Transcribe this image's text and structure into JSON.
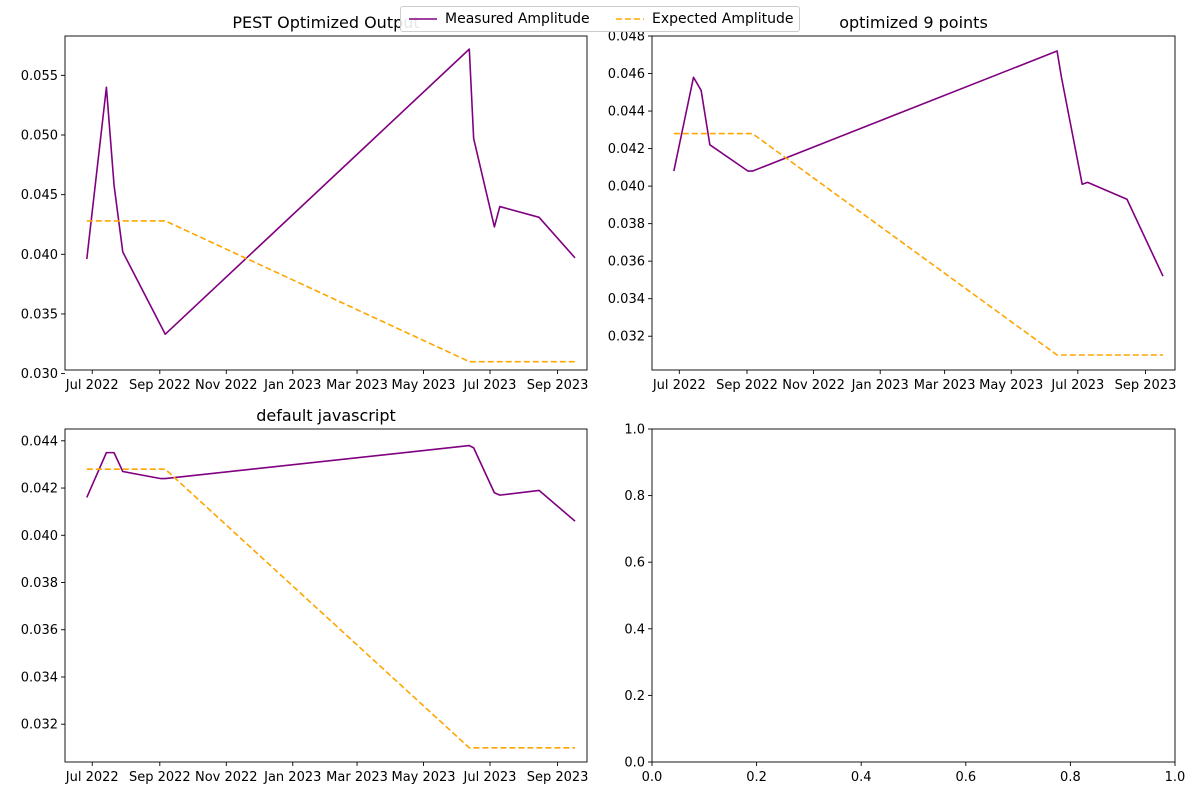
{
  "legend": {
    "items": [
      {
        "label": "Measured Amplitude",
        "color": "#800080",
        "style": "solid"
      },
      {
        "label": "Expected Amplitude",
        "color": "#FFA500",
        "style": "dashed"
      }
    ],
    "placement": "top-center"
  },
  "chart_data": [
    {
      "type": "line",
      "title": "PEST Optimized Output",
      "xlabel": "",
      "ylabel": "",
      "x_axis": "date",
      "xlim": [
        "2022-06-06",
        "2023-09-28"
      ],
      "ylim": [
        0.0303,
        0.0583
      ],
      "xticks": [
        {
          "date": "2022-07-01",
          "label": "Jul 2022"
        },
        {
          "date": "2022-09-01",
          "label": "Sep 2022"
        },
        {
          "date": "2022-11-01",
          "label": "Nov 2022"
        },
        {
          "date": "2023-01-01",
          "label": "Jan 2023"
        },
        {
          "date": "2023-03-01",
          "label": "Mar 2023"
        },
        {
          "date": "2023-05-01",
          "label": "May 2023"
        },
        {
          "date": "2023-07-01",
          "label": "Jul 2023"
        },
        {
          "date": "2023-09-01",
          "label": "Sep 2023"
        }
      ],
      "yticks": [
        "0.030",
        "0.035",
        "0.040",
        "0.045",
        "0.050",
        "0.055"
      ],
      "grid": false,
      "series": [
        {
          "name": "Measured Amplitude",
          "color": "#800080",
          "style": "solid",
          "points": [
            [
              "2022-06-26",
              0.0396
            ],
            [
              "2022-07-14",
              0.054
            ],
            [
              "2022-07-21",
              0.0458
            ],
            [
              "2022-07-29",
              0.0402
            ],
            [
              "2022-09-06",
              0.0333
            ],
            [
              "2023-06-12",
              0.0572
            ],
            [
              "2023-06-16",
              0.0497
            ],
            [
              "2023-07-05",
              0.0423
            ],
            [
              "2023-07-10",
              0.044
            ],
            [
              "2023-08-15",
              0.0431
            ],
            [
              "2023-09-17",
              0.0397
            ]
          ]
        },
        {
          "name": "Expected Amplitude",
          "color": "#FFA500",
          "style": "dashed",
          "points": [
            [
              "2022-06-26",
              0.0428
            ],
            [
              "2022-09-06",
              0.0428
            ],
            [
              "2023-06-12",
              0.031
            ],
            [
              "2023-09-17",
              0.031
            ]
          ]
        }
      ]
    },
    {
      "type": "line",
      "title": "optimized 9 points",
      "xlabel": "",
      "ylabel": "",
      "x_axis": "date",
      "xlim": [
        "2022-06-06",
        "2023-09-28"
      ],
      "ylim": [
        0.0302,
        0.048
      ],
      "xticks": [
        {
          "date": "2022-07-01",
          "label": "Jul 2022"
        },
        {
          "date": "2022-09-01",
          "label": "Sep 2022"
        },
        {
          "date": "2022-11-01",
          "label": "Nov 2022"
        },
        {
          "date": "2023-01-01",
          "label": "Jan 2023"
        },
        {
          "date": "2023-03-01",
          "label": "Mar 2023"
        },
        {
          "date": "2023-05-01",
          "label": "May 2023"
        },
        {
          "date": "2023-07-01",
          "label": "Jul 2023"
        },
        {
          "date": "2023-09-01",
          "label": "Sep 2023"
        }
      ],
      "yticks": [
        "0.032",
        "0.034",
        "0.036",
        "0.038",
        "0.040",
        "0.042",
        "0.044",
        "0.046",
        "0.048"
      ],
      "grid": false,
      "series": [
        {
          "name": "Measured Amplitude",
          "color": "#800080",
          "style": "solid",
          "points": [
            [
              "2022-06-26",
              0.0408
            ],
            [
              "2022-07-14",
              0.0458
            ],
            [
              "2022-07-21",
              0.0451
            ],
            [
              "2022-07-29",
              0.0422
            ],
            [
              "2022-09-02",
              0.0408
            ],
            [
              "2022-09-06",
              0.0408
            ],
            [
              "2023-06-12",
              0.0472
            ],
            [
              "2023-06-16",
              0.0458
            ],
            [
              "2023-07-05",
              0.0401
            ],
            [
              "2023-07-10",
              0.0402
            ],
            [
              "2023-08-15",
              0.0393
            ],
            [
              "2023-09-17",
              0.0352
            ]
          ]
        },
        {
          "name": "Expected Amplitude",
          "color": "#FFA500",
          "style": "dashed",
          "points": [
            [
              "2022-06-26",
              0.0428
            ],
            [
              "2022-09-06",
              0.0428
            ],
            [
              "2023-06-12",
              0.031
            ],
            [
              "2023-09-17",
              0.031
            ]
          ]
        }
      ]
    },
    {
      "type": "line",
      "title": "default javascript",
      "xlabel": "",
      "ylabel": "",
      "x_axis": "date",
      "xlim": [
        "2022-06-06",
        "2023-09-28"
      ],
      "ylim": [
        0.0304,
        0.0445
      ],
      "xticks": [
        {
          "date": "2022-07-01",
          "label": "Jul 2022"
        },
        {
          "date": "2022-09-01",
          "label": "Sep 2022"
        },
        {
          "date": "2022-11-01",
          "label": "Nov 2022"
        },
        {
          "date": "2023-01-01",
          "label": "Jan 2023"
        },
        {
          "date": "2023-03-01",
          "label": "Mar 2023"
        },
        {
          "date": "2023-05-01",
          "label": "May 2023"
        },
        {
          "date": "2023-07-01",
          "label": "Jul 2023"
        },
        {
          "date": "2023-09-01",
          "label": "Sep 2023"
        }
      ],
      "yticks": [
        "0.032",
        "0.034",
        "0.036",
        "0.038",
        "0.040",
        "0.042",
        "0.044"
      ],
      "grid": false,
      "series": [
        {
          "name": "Measured Amplitude",
          "color": "#800080",
          "style": "solid",
          "points": [
            [
              "2022-06-26",
              0.0416
            ],
            [
              "2022-07-14",
              0.0435
            ],
            [
              "2022-07-21",
              0.0435
            ],
            [
              "2022-07-29",
              0.0427
            ],
            [
              "2022-09-02",
              0.0424
            ],
            [
              "2022-09-06",
              0.0424
            ],
            [
              "2023-06-12",
              0.0438
            ],
            [
              "2023-06-16",
              0.0437
            ],
            [
              "2023-07-05",
              0.0418
            ],
            [
              "2023-07-10",
              0.0417
            ],
            [
              "2023-08-15",
              0.0419
            ],
            [
              "2023-09-17",
              0.0406
            ]
          ]
        },
        {
          "name": "Expected Amplitude",
          "color": "#FFA500",
          "style": "dashed",
          "points": [
            [
              "2022-06-26",
              0.0428
            ],
            [
              "2022-09-06",
              0.0428
            ],
            [
              "2023-06-12",
              0.031
            ],
            [
              "2023-09-17",
              0.031
            ]
          ]
        }
      ]
    },
    {
      "type": "line",
      "title": "",
      "xlabel": "",
      "ylabel": "",
      "x_axis": "numeric",
      "xlim": [
        0,
        1
      ],
      "ylim": [
        0,
        1
      ],
      "xticks": [
        {
          "value": 0.0,
          "label": "0.0"
        },
        {
          "value": 0.2,
          "label": "0.2"
        },
        {
          "value": 0.4,
          "label": "0.4"
        },
        {
          "value": 0.6,
          "label": "0.6"
        },
        {
          "value": 0.8,
          "label": "0.8"
        },
        {
          "value": 1.0,
          "label": "1.0"
        }
      ],
      "yticks": [
        "0.0",
        "0.2",
        "0.4",
        "0.6",
        "0.8",
        "1.0"
      ],
      "grid": false,
      "series": []
    }
  ]
}
